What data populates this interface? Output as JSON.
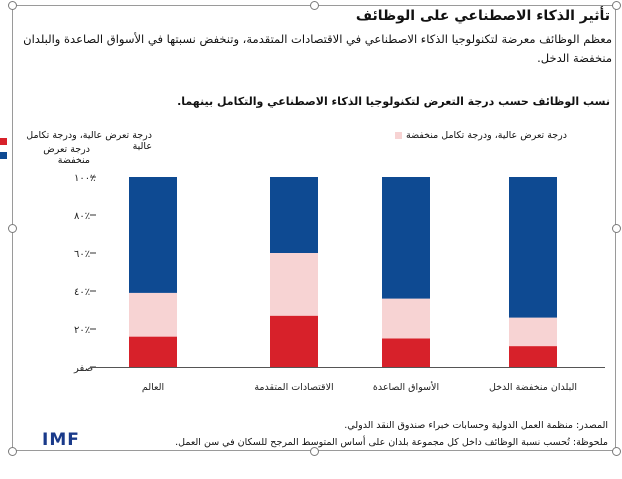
{
  "title": "تأثير الذكاء الاصطناعي على الوظائف",
  "intro": "معظم الوظائف معرضة لتكنولوجيا الذكاء الاصطناعي في الاقتصادات المتقدمة، وتنخفض نسبتها في الأسواق الصاعدة والبلدان منخفضة الدخل.",
  "chart_title": "نسب الوظائف حسب درجة التعرض لتكنولوجيا الذكاء الاصطناعي والتكامل بينهما.",
  "legend": {
    "high_high": "درجة تعرض عالية، ودرجة تكامل عالية",
    "high_low": "درجة تعرض عالية، ودرجة تكامل منخفضة",
    "low": "درجة تعرض منخفضة"
  },
  "colors": {
    "high_high": "#d7212a",
    "high_low": "#f7d3d3",
    "low": "#0e4a92"
  },
  "chart_data": {
    "type": "bar",
    "stacked": true,
    "categories": [
      "العالم",
      "الاقتصادات المتقدمة",
      "الأسواق الصاعدة",
      "البلدان منخفضة الدخل"
    ],
    "series": [
      {
        "name": "درجة تعرض عالية، ودرجة تكامل عالية",
        "values": [
          16,
          27,
          15,
          11
        ]
      },
      {
        "name": "درجة تعرض عالية، ودرجة تكامل منخفضة",
        "values": [
          23,
          33,
          21,
          15
        ]
      },
      {
        "name": "درجة تعرض منخفضة",
        "values": [
          61,
          40,
          64,
          74
        ]
      }
    ],
    "ylim": [
      0,
      100
    ],
    "yticks": [
      0,
      20,
      40,
      60,
      80,
      100
    ],
    "ytick_labels": [
      "صفر",
      "٪٢٠",
      "٪٤٠",
      "٪٦٠",
      "٪٨٠",
      "٪١٠٠"
    ],
    "grid": false,
    "legend_position": "top"
  },
  "source": "المصدر: منظمة العمل الدولية وحسابات خبراء صندوق النقد الدولي.",
  "note": "ملحوظة: تُحسب نسبة الوظائف داخل كل مجموعة بلدان على أساس المتوسط المرجح للسكان في سن العمل.",
  "logo_text": "IMF"
}
